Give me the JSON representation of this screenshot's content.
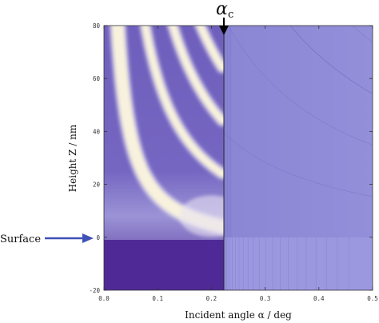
{
  "chart_data": {
    "type": "heatmap",
    "title": "",
    "xlabel": "Incident angle α / deg",
    "ylabel": "Height Z / nm",
    "xlim": [
      0.0,
      0.5
    ],
    "ylim": [
      -20,
      80
    ],
    "x_ticks": [
      0.0,
      0.1,
      0.2,
      0.3,
      0.4,
      0.5
    ],
    "x_tick_labels": [
      "0.0",
      "0.1",
      "0.2",
      "0.3",
      "0.4",
      "0.5"
    ],
    "y_ticks": [
      -20,
      0,
      20,
      40,
      60,
      80
    ],
    "y_tick_labels": [
      "-20",
      "0",
      "20",
      "40",
      "60",
      "80"
    ],
    "grid": false,
    "annotations": [
      {
        "name": "critical-angle",
        "label_main": "α",
        "label_sub": "c",
        "x": 0.22,
        "y": 80
      },
      {
        "name": "surface",
        "label": "Surface",
        "x": 0.0,
        "y": 0
      }
    ],
    "colors": {
      "low": "#4f2a96",
      "mid": "#9b93d6",
      "high": "#f7f1dd",
      "right_region": "#8a86d4",
      "arrow": "#3f51b5"
    }
  }
}
